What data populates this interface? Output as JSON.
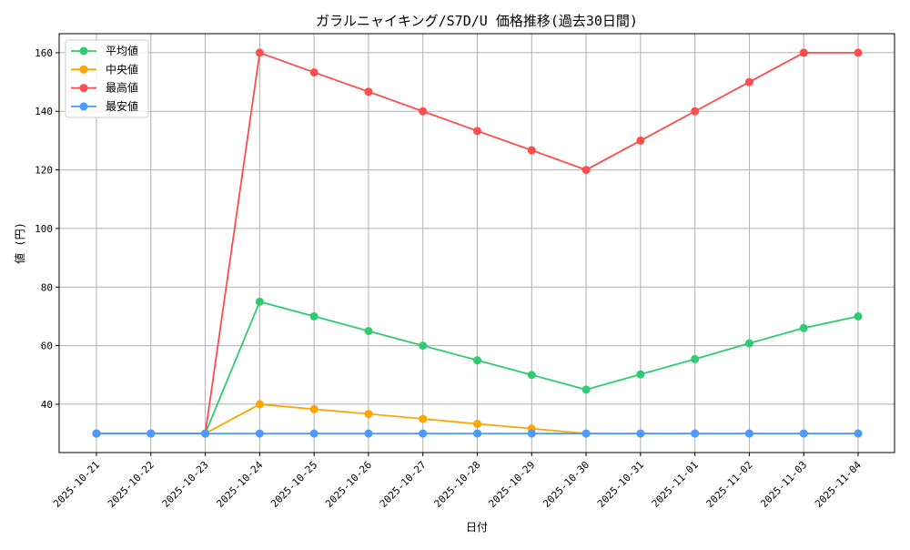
{
  "chart_data": {
    "type": "line",
    "title": "ガラルニャイキング/S7D/U 価格推移(過去30日間)",
    "xlabel": "日付",
    "ylabel": "値 (円)",
    "categories": [
      "2025-10-21",
      "2025-10-22",
      "2025-10-23",
      "2025-10-24",
      "2025-10-25",
      "2025-10-26",
      "2025-10-27",
      "2025-10-28",
      "2025-10-29",
      "2025-10-30",
      "2025-10-31",
      "2025-11-01",
      "2025-11-02",
      "2025-11-03",
      "2025-11-04"
    ],
    "ylim": [
      23.5,
      166.5
    ],
    "yticks": [
      40,
      60,
      80,
      100,
      120,
      140,
      160
    ],
    "grid": true,
    "legend_position": "top-left",
    "series": [
      {
        "name": "平均値",
        "color": "#2ecc71",
        "values": [
          30,
          30,
          30,
          75,
          70,
          65,
          60,
          55,
          50,
          45,
          50.2,
          55.4,
          60.8,
          66,
          70
        ]
      },
      {
        "name": "中央値",
        "color": "#ffa500",
        "values": [
          30,
          30,
          30,
          40,
          38.3,
          36.7,
          35,
          33.3,
          31.7,
          30,
          30,
          30,
          30,
          30,
          30
        ]
      },
      {
        "name": "最高値",
        "color": "#ff4c4c",
        "values": [
          30,
          30,
          30,
          160,
          153.3,
          146.7,
          140,
          133.3,
          126.7,
          120,
          130,
          140,
          150,
          160,
          160
        ]
      },
      {
        "name": "最安値",
        "color": "#4c9aff",
        "values": [
          30,
          30,
          30,
          30,
          30,
          30,
          30,
          30,
          30,
          30,
          30,
          30,
          30,
          30,
          30
        ]
      }
    ]
  }
}
